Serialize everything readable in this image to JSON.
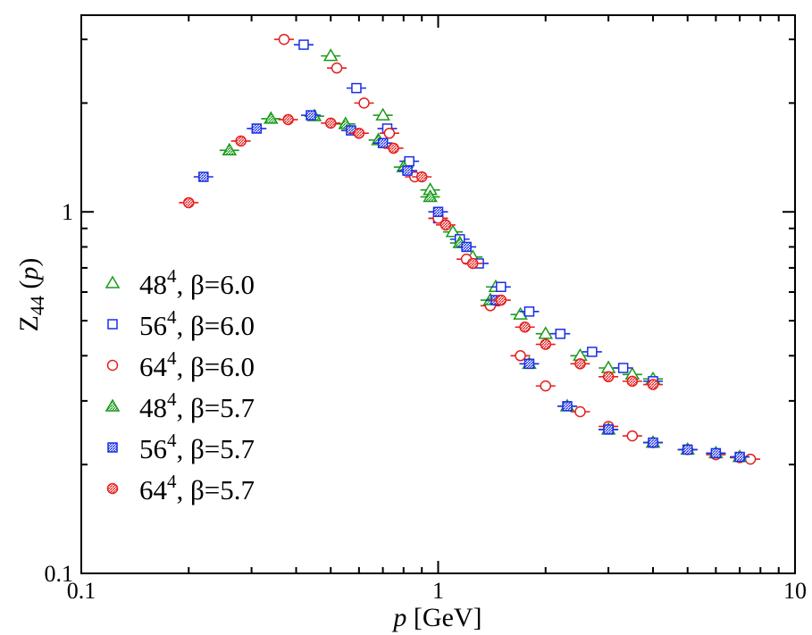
{
  "chart_data": {
    "type": "scatter",
    "xscale": "log",
    "yscale": "log",
    "xlim": [
      0.1,
      10
    ],
    "ylim": [
      0.1,
      3.5
    ],
    "xlabel": {
      "italic": "p",
      "rest": " [GeV]"
    },
    "ylabel": {
      "main": "Z",
      "sub": "44",
      "arg": "p"
    },
    "xticks": [
      {
        "value": 0.1,
        "label": "0.1"
      },
      {
        "value": 1,
        "label": "1"
      },
      {
        "value": 10,
        "label": "10"
      }
    ],
    "yticks": [
      {
        "value": 0.1,
        "label": "0.1"
      },
      {
        "value": 1,
        "label": "1"
      }
    ],
    "legend_position": "left-middle",
    "series": [
      {
        "name": "48^4, β=6.0",
        "legend_base": "48",
        "legend_exp": "4",
        "legend_rest": ", β=6.0",
        "marker": "triangle",
        "fill": "open",
        "color": "#1a9a1a",
        "x": [
          0.5,
          0.7,
          0.95,
          1.1,
          1.25,
          1.45,
          1.7,
          2.0,
          2.5,
          3.0,
          3.5,
          4.0
        ],
        "y": [
          2.7,
          1.85,
          1.15,
          0.88,
          0.75,
          0.62,
          0.52,
          0.46,
          0.4,
          0.37,
          0.355,
          0.345
        ]
      },
      {
        "name": "56^4, β=6.0",
        "legend_base": "56",
        "legend_exp": "4",
        "legend_rest": ", β=6.0",
        "marker": "square",
        "fill": "open",
        "color": "#1a2ee6",
        "x": [
          0.42,
          0.59,
          0.72,
          0.83,
          1.0,
          1.15,
          1.3,
          1.5,
          1.8,
          2.2,
          2.7,
          3.3,
          4.0
        ],
        "y": [
          2.9,
          2.2,
          1.7,
          1.38,
          0.96,
          0.84,
          0.72,
          0.62,
          0.53,
          0.46,
          0.41,
          0.37,
          0.34
        ]
      },
      {
        "name": "64^4, β=6.0",
        "legend_base": "64",
        "legend_exp": "4",
        "legend_rest": ", β=6.0",
        "marker": "circle",
        "fill": "open",
        "color": "#e61e1e",
        "x": [
          0.37,
          0.52,
          0.62,
          0.73,
          0.86,
          1.0,
          1.2,
          1.4,
          1.7,
          2.0,
          2.5,
          3.0,
          3.5,
          4.0,
          5.0,
          6.0,
          7.0,
          7.5
        ],
        "y": [
          3.0,
          2.5,
          2.0,
          1.65,
          1.25,
          0.96,
          0.74,
          0.55,
          0.4,
          0.33,
          0.28,
          0.255,
          0.24,
          0.23,
          0.22,
          0.213,
          0.209,
          0.207
        ]
      },
      {
        "name": "48^4, β=5.7",
        "legend_base": "48",
        "legend_exp": "4",
        "legend_rest": ", β=5.7",
        "marker": "triangle",
        "fill": "hatched",
        "color": "#1a9a1a",
        "x": [
          0.26,
          0.34,
          0.45,
          0.55,
          0.68,
          0.8,
          0.95,
          1.15,
          1.4,
          1.8,
          2.3,
          3.0,
          4.0,
          5.0,
          6.0,
          7.0
        ],
        "y": [
          1.48,
          1.81,
          1.84,
          1.75,
          1.58,
          1.33,
          1.1,
          0.82,
          0.57,
          0.38,
          0.29,
          0.25,
          0.23,
          0.22,
          0.215,
          0.21
        ]
      },
      {
        "name": "56^4, β=5.7",
        "legend_base": "56",
        "legend_exp": "4",
        "legend_rest": ", β=5.7",
        "marker": "square",
        "fill": "hatched",
        "color": "#1a2ee6",
        "x": [
          0.22,
          0.31,
          0.44,
          0.57,
          0.7,
          0.82,
          1.0,
          1.2,
          1.45,
          1.8,
          2.3,
          3.0,
          4.0,
          5.0,
          6.0,
          7.0
        ],
        "y": [
          1.25,
          1.7,
          1.85,
          1.68,
          1.55,
          1.3,
          1.0,
          0.8,
          0.57,
          0.38,
          0.29,
          0.25,
          0.23,
          0.22,
          0.215,
          0.21
        ]
      },
      {
        "name": "64^4, β=5.7",
        "legend_base": "64",
        "legend_exp": "4",
        "legend_rest": ", β=5.7",
        "marker": "circle",
        "fill": "hatched",
        "color": "#e61e1e",
        "x": [
          0.2,
          0.28,
          0.38,
          0.5,
          0.6,
          0.75,
          0.9,
          1.05,
          1.25,
          1.5,
          1.75,
          2.0,
          2.5,
          3.0,
          3.5,
          4.0
        ],
        "y": [
          1.06,
          1.57,
          1.8,
          1.76,
          1.65,
          1.5,
          1.25,
          0.92,
          0.72,
          0.57,
          0.48,
          0.43,
          0.38,
          0.35,
          0.34,
          0.333
        ]
      }
    ]
  }
}
